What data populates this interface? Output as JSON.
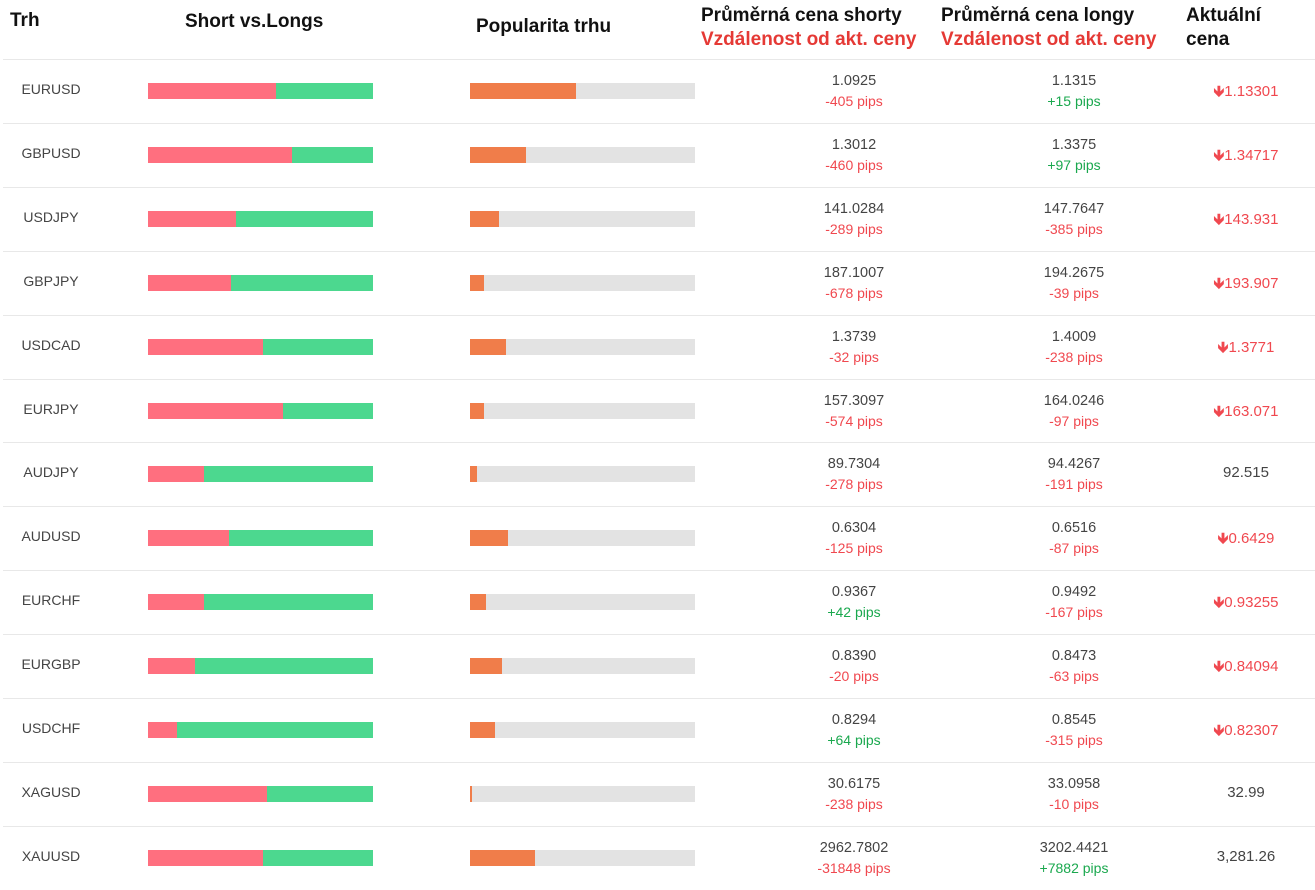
{
  "headers": {
    "market": "Trh",
    "short_vs_longs": "Short vs.Longs",
    "popularity": "Popularita trhu",
    "avg_short": "Průměrná cena shorty",
    "avg_long": "Průměrná cena longy",
    "distance": "Vzdálenost od akt. ceny",
    "current_line1": "Aktuální",
    "current_line2": "cena"
  },
  "colors": {
    "short": "#ff6f7f",
    "long": "#4cd88f",
    "popularity": "#f07d4a",
    "popularity_track": "#e3e3e3",
    "negative": "#f0484f",
    "positive": "#1aa84e"
  },
  "icons": {
    "down": "arrow-down-icon"
  },
  "rows": [
    {
      "symbol": "EURUSD",
      "short_pct": 57,
      "popularity_pct": 47,
      "short_price": "1.0925",
      "short_dist": "-405 pips",
      "long_price": "1.1315",
      "long_dist": "+15 pips",
      "current": "1.13301",
      "trend": "down"
    },
    {
      "symbol": "GBPUSD",
      "short_pct": 64,
      "popularity_pct": 25,
      "short_price": "1.3012",
      "short_dist": "-460 pips",
      "long_price": "1.3375",
      "long_dist": "+97 pips",
      "current": "1.34717",
      "trend": "down"
    },
    {
      "symbol": "USDJPY",
      "short_pct": 39,
      "popularity_pct": 13,
      "short_price": "141.0284",
      "short_dist": "-289 pips",
      "long_price": "147.7647",
      "long_dist": "-385 pips",
      "current": "143.931",
      "trend": "down"
    },
    {
      "symbol": "GBPJPY",
      "short_pct": 37,
      "popularity_pct": 6,
      "short_price": "187.1007",
      "short_dist": "-678 pips",
      "long_price": "194.2675",
      "long_dist": "-39 pips",
      "current": "193.907",
      "trend": "down"
    },
    {
      "symbol": "USDCAD",
      "short_pct": 51,
      "popularity_pct": 16,
      "short_price": "1.3739",
      "short_dist": "-32 pips",
      "long_price": "1.4009",
      "long_dist": "-238 pips",
      "current": "1.3771",
      "trend": "down"
    },
    {
      "symbol": "EURJPY",
      "short_pct": 60,
      "popularity_pct": 6,
      "short_price": "157.3097",
      "short_dist": "-574 pips",
      "long_price": "164.0246",
      "long_dist": "-97 pips",
      "current": "163.071",
      "trend": "down"
    },
    {
      "symbol": "AUDJPY",
      "short_pct": 25,
      "popularity_pct": 3,
      "short_price": "89.7304",
      "short_dist": "-278 pips",
      "long_price": "94.4267",
      "long_dist": "-191 pips",
      "current": "92.515",
      "trend": "none"
    },
    {
      "symbol": "AUDUSD",
      "short_pct": 36,
      "popularity_pct": 17,
      "short_price": "0.6304",
      "short_dist": "-125 pips",
      "long_price": "0.6516",
      "long_dist": "-87 pips",
      "current": "0.6429",
      "trend": "down"
    },
    {
      "symbol": "EURCHF",
      "short_pct": 25,
      "popularity_pct": 7,
      "short_price": "0.9367",
      "short_dist": "+42 pips",
      "long_price": "0.9492",
      "long_dist": "-167 pips",
      "current": "0.93255",
      "trend": "down"
    },
    {
      "symbol": "EURGBP",
      "short_pct": 21,
      "popularity_pct": 14,
      "short_price": "0.8390",
      "short_dist": "-20 pips",
      "long_price": "0.8473",
      "long_dist": "-63 pips",
      "current": "0.84094",
      "trend": "down"
    },
    {
      "symbol": "USDCHF",
      "short_pct": 13,
      "popularity_pct": 11,
      "short_price": "0.8294",
      "short_dist": "+64 pips",
      "long_price": "0.8545",
      "long_dist": "-315 pips",
      "current": "0.82307",
      "trend": "down"
    },
    {
      "symbol": "XAGUSD",
      "short_pct": 53,
      "popularity_pct": 1,
      "short_price": "30.6175",
      "short_dist": "-238 pips",
      "long_price": "33.0958",
      "long_dist": "-10 pips",
      "current": "32.99",
      "trend": "none"
    },
    {
      "symbol": "XAUUSD",
      "short_pct": 51,
      "popularity_pct": 29,
      "short_price": "2962.7802",
      "short_dist": "-31848 pips",
      "long_price": "3202.4421",
      "long_dist": "+7882 pips",
      "current": "3,281.26",
      "trend": "none"
    }
  ]
}
